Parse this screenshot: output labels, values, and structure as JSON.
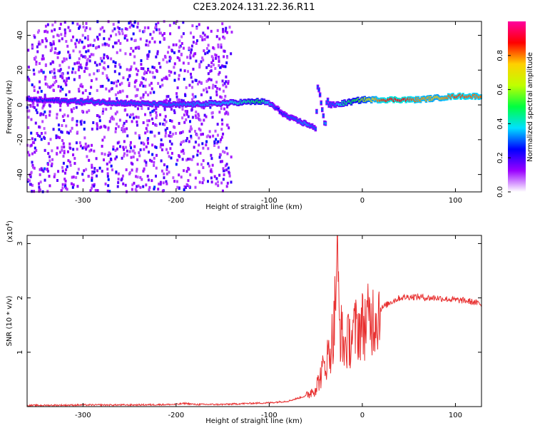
{
  "title": "C2E3.2024.131.22.36.R11",
  "chart_data": [
    {
      "type": "heatmap",
      "xlabel": "Height of straight line (km)",
      "ylabel": "Frequency (Hz)",
      "xlim": [
        -360,
        128
      ],
      "ylim": [
        -50,
        48
      ],
      "x_ticks": [
        -300,
        -200,
        -100,
        0,
        100
      ],
      "x_tick_labels": [
        "-300",
        "-200",
        "-100",
        "0",
        "100"
      ],
      "y_ticks": [
        -40,
        -20,
        0,
        20,
        40
      ],
      "y_tick_labels": [
        "-40",
        "-20",
        "0",
        "20",
        "40"
      ],
      "colorbar": {
        "label": "Normalized spectral amplitude",
        "range": [
          0,
          1
        ],
        "ticks": [
          0.0,
          0.2,
          0.4,
          0.6,
          0.8
        ],
        "tick_labels": [
          "0.0",
          "0.2",
          "0.4",
          "0.6",
          "0.8"
        ],
        "colormap": [
          "#ffffff",
          "#9a00ff",
          "#0000ff",
          "#00e0ff",
          "#00ff40",
          "#c0ff00",
          "#ffd000",
          "#ff0000",
          "#ff00a0"
        ]
      },
      "trace": {
        "x": [
          -360,
          -300,
          -250,
          -200,
          -150,
          -110,
          -100,
          -90,
          -80,
          -70,
          -60,
          -55,
          -50,
          -48,
          -46,
          -44,
          -42,
          -40,
          -38,
          -36,
          -30,
          -20,
          -10,
          0,
          20,
          40,
          60,
          80,
          100,
          128
        ],
        "frequency": [
          3,
          2,
          1,
          0,
          1,
          2,
          1,
          -3,
          -7,
          -9,
          -11,
          -12,
          -14,
          10,
          8,
          0,
          -6,
          -14,
          5,
          0,
          0,
          1,
          2,
          3,
          3,
          3,
          3,
          4,
          5,
          5
        ],
        "amplitude": [
          0.25,
          0.3,
          0.3,
          0.32,
          0.35,
          0.5,
          0.35,
          0.25,
          0.3,
          0.3,
          0.35,
          0.3,
          0.3,
          0.3,
          0.28,
          0.3,
          0.3,
          0.35,
          0.3,
          0.3,
          0.3,
          0.45,
          0.5,
          0.6,
          0.85,
          0.9,
          0.8,
          0.75,
          0.85,
          0.8
        ]
      },
      "grid": false
    },
    {
      "type": "line",
      "xlabel": "Height of straight line (km)",
      "ylabel": "SNR (10 * v/v)",
      "y_multiplier_label": "(x10",
      "y_multiplier_exp": "4",
      "xlim": [
        -360,
        128
      ],
      "ylim": [
        0,
        3.15
      ],
      "x_ticks": [
        -300,
        -200,
        -100,
        0,
        100
      ],
      "x_tick_labels": [
        "-300",
        "-200",
        "-100",
        "0",
        "100"
      ],
      "y_ticks": [
        1,
        2,
        3
      ],
      "y_tick_labels": [
        "1",
        "2",
        "3"
      ],
      "series": [
        {
          "color": "#e83030",
          "x": [
            -360,
            -300,
            -250,
            -200,
            -190,
            -180,
            -150,
            -120,
            -100,
            -80,
            -60,
            -50,
            -45,
            -40,
            -35,
            -30,
            -27,
            -25,
            -20,
            -15,
            -10,
            -5,
            0,
            10,
            20,
            30,
            40,
            50,
            60,
            70,
            80,
            90,
            100,
            110,
            120,
            128
          ],
          "values": [
            0.02,
            0.03,
            0.03,
            0.04,
            0.06,
            0.04,
            0.04,
            0.06,
            0.07,
            0.1,
            0.2,
            0.35,
            0.55,
            0.8,
            1.0,
            1.5,
            3.1,
            1.6,
            1.1,
            1.2,
            1.35,
            1.45,
            1.5,
            1.62,
            1.8,
            1.92,
            2.0,
            2.02,
            2.02,
            2.0,
            2.0,
            1.98,
            1.96,
            1.95,
            1.92,
            1.88
          ]
        }
      ],
      "grid": false
    }
  ]
}
